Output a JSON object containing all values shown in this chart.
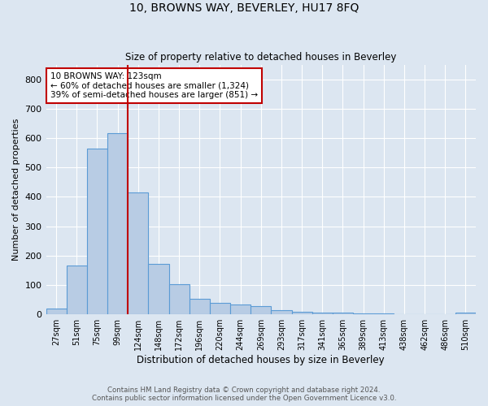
{
  "title": "10, BROWNS WAY, BEVERLEY, HU17 8FQ",
  "subtitle": "Size of property relative to detached houses in Beverley",
  "xlabel": "Distribution of detached houses by size in Beverley",
  "ylabel": "Number of detached properties",
  "footnote1": "Contains HM Land Registry data © Crown copyright and database right 2024.",
  "footnote2": "Contains public sector information licensed under the Open Government Licence v3.0.",
  "bar_labels": [
    "27sqm",
    "51sqm",
    "75sqm",
    "99sqm",
    "124sqm",
    "148sqm",
    "172sqm",
    "196sqm",
    "220sqm",
    "244sqm",
    "269sqm",
    "293sqm",
    "317sqm",
    "341sqm",
    "365sqm",
    "389sqm",
    "413sqm",
    "438sqm",
    "462sqm",
    "486sqm",
    "510sqm"
  ],
  "bar_values": [
    20,
    165,
    565,
    618,
    415,
    172,
    102,
    52,
    40,
    35,
    28,
    15,
    10,
    7,
    5,
    3,
    2,
    1,
    1,
    0,
    7
  ],
  "bar_color": "#b8cce4",
  "bar_edge_color": "#5b9bd5",
  "background_color": "#dce6f1",
  "grid_color": "#ffffff",
  "vline_x": 3.5,
  "vline_color": "#c00000",
  "annotation_text": "10 BROWNS WAY: 123sqm\n← 60% of detached houses are smaller (1,324)\n39% of semi-detached houses are larger (851) →",
  "annotation_box_color": "#ffffff",
  "annotation_box_edge": "#c00000",
  "ylim": [
    0,
    850
  ],
  "yticks": [
    0,
    100,
    200,
    300,
    400,
    500,
    600,
    700,
    800
  ]
}
